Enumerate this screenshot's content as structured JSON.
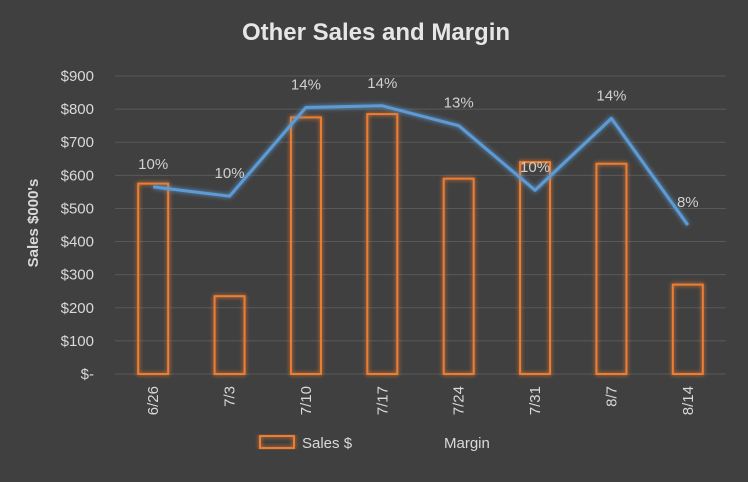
{
  "chart_data": {
    "type": "bar",
    "title": "Other Sales and Margin",
    "ylabel": "Sales $000's",
    "xlabel": "",
    "categories": [
      "6/26",
      "7/3",
      "7/10",
      "7/17",
      "7/24",
      "7/31",
      "8/7",
      "8/14"
    ],
    "yticks": [
      "$-",
      "$100",
      "$200",
      "$300",
      "$400",
      "$500",
      "$600",
      "$700",
      "$800",
      "$900"
    ],
    "ylim": [
      0,
      900
    ],
    "grid": true,
    "legend_position": "bottom",
    "series": [
      {
        "name": "Sales $",
        "type": "bar",
        "color": "#ed7d31",
        "values": [
          575,
          235,
          775,
          785,
          590,
          640,
          635,
          270
        ]
      },
      {
        "name": "Margin",
        "type": "line",
        "color": "#5b9bd5",
        "values": [
          10,
          10,
          14,
          14,
          13,
          10,
          14,
          8
        ],
        "labels": [
          "10%",
          "10%",
          "14%",
          "14%",
          "13%",
          "10%",
          "14%",
          "8%"
        ],
        "plot_values": [
          565,
          537,
          805,
          810,
          750,
          555,
          772,
          450
        ]
      }
    ]
  }
}
